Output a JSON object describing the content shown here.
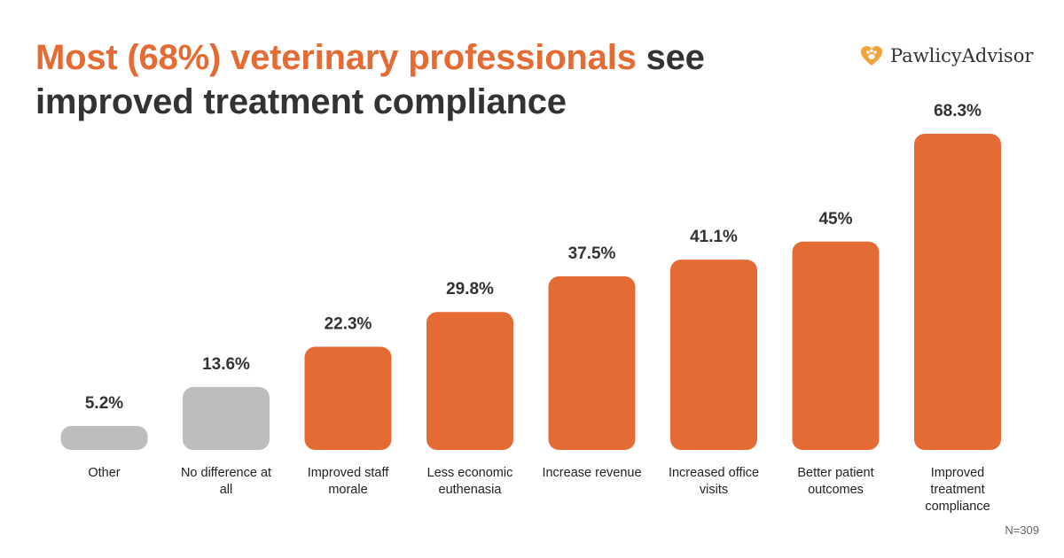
{
  "title": {
    "highlight": "Most (68%) veterinary professionals",
    "rest": " see improved treatment compliance"
  },
  "brand": {
    "name": "PawlicyAdvisor",
    "icon": "heart-paw-icon"
  },
  "footnote": "N=309",
  "colors": {
    "accent": "#e46b34",
    "neutral": "#bdbdbd",
    "text": "#333333"
  },
  "chart_data": {
    "type": "bar",
    "title": "Most (68%) veterinary professionals see improved treatment compliance",
    "xlabel": "",
    "ylabel": "",
    "ylim": [
      0,
      70
    ],
    "grid": false,
    "categories": [
      [
        "Other"
      ],
      [
        "No difference at",
        "all"
      ],
      [
        "Improved staff",
        "morale"
      ],
      [
        "Less economic",
        "euthenasia"
      ],
      [
        "Increase revenue"
      ],
      [
        "Increased office",
        "visits"
      ],
      [
        "Better patient",
        "outcomes"
      ],
      [
        "Improved",
        "treatment",
        "compliance"
      ]
    ],
    "values": [
      5.2,
      13.6,
      22.3,
      29.8,
      37.5,
      41.1,
      45,
      68.3
    ],
    "value_labels": [
      "5.2%",
      "13.6%",
      "22.3%",
      "29.8%",
      "37.5%",
      "41.1%",
      "45%",
      "68.3%"
    ],
    "bar_colors": [
      "#bdbdbd",
      "#bdbdbd",
      "#e46b34",
      "#e46b34",
      "#e46b34",
      "#e46b34",
      "#e46b34",
      "#e46b34"
    ]
  }
}
